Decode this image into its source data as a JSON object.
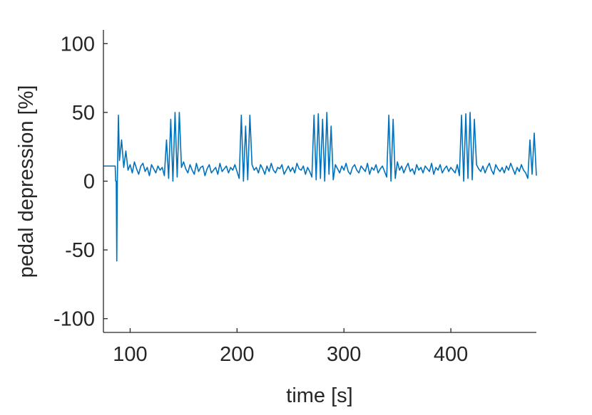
{
  "chart_data": {
    "type": "line",
    "xlabel": "time [s]",
    "ylabel": "pedal depression [%]",
    "xlim": [
      75,
      480
    ],
    "ylim": [
      -110,
      110
    ],
    "xticks": [
      100,
      200,
      300,
      400
    ],
    "yticks": [
      -100,
      -50,
      0,
      50,
      100
    ],
    "color": "#0072bd",
    "x": [
      75,
      86,
      86.5,
      87,
      87.5,
      88,
      89,
      90,
      92,
      94,
      96,
      98,
      100,
      102,
      104,
      106,
      108,
      110,
      112,
      114,
      116,
      118,
      120,
      122,
      124,
      126,
      128,
      130,
      132,
      134,
      136,
      138,
      140,
      142,
      144,
      146,
      148,
      150,
      152,
      154,
      156,
      158,
      160,
      162,
      164,
      166,
      168,
      170,
      172,
      174,
      176,
      178,
      180,
      182,
      184,
      186,
      188,
      190,
      192,
      194,
      196,
      198,
      200,
      202,
      204,
      206,
      208,
      210,
      212,
      214,
      216,
      218,
      220,
      222,
      224,
      226,
      228,
      230,
      232,
      234,
      236,
      238,
      240,
      242,
      244,
      246,
      248,
      250,
      252,
      254,
      256,
      258,
      260,
      262,
      264,
      266,
      268,
      270,
      272,
      274,
      276,
      278,
      280,
      282,
      284,
      286,
      288,
      290,
      292,
      294,
      296,
      298,
      300,
      302,
      304,
      306,
      308,
      310,
      312,
      314,
      316,
      318,
      320,
      322,
      324,
      326,
      328,
      330,
      332,
      334,
      336,
      338,
      340,
      342,
      344,
      346,
      348,
      350,
      352,
      354,
      356,
      358,
      360,
      362,
      364,
      366,
      368,
      370,
      372,
      374,
      376,
      378,
      380,
      382,
      384,
      386,
      388,
      390,
      392,
      394,
      396,
      398,
      400,
      402,
      404,
      406,
      408,
      410,
      412,
      414,
      416,
      418,
      420,
      422,
      424,
      426,
      428,
      430,
      432,
      434,
      436,
      438,
      440,
      442,
      444,
      446,
      448,
      450,
      452,
      454,
      456,
      458,
      460,
      462,
      464,
      466,
      468,
      470,
      472,
      474,
      476,
      478,
      480
    ],
    "values": [
      11,
      11,
      0,
      0,
      -58,
      0,
      48,
      15,
      30,
      10,
      22,
      8,
      12,
      6,
      14,
      9,
      5,
      11,
      13,
      7,
      10,
      4,
      12,
      9,
      6,
      11,
      8,
      10,
      4,
      30,
      2,
      45,
      0,
      50,
      3,
      50,
      10,
      14,
      9,
      6,
      12,
      8,
      5,
      13,
      7,
      10,
      11,
      4,
      9,
      12,
      6,
      8,
      10,
      5,
      13,
      7,
      9,
      11,
      6,
      10,
      8,
      12,
      7,
      2,
      48,
      0,
      40,
      1,
      48,
      12,
      8,
      10,
      6,
      12,
      9,
      5,
      11,
      7,
      13,
      8,
      6,
      10,
      9,
      12,
      5,
      8,
      11,
      7,
      10,
      6,
      13,
      9,
      8,
      11,
      5,
      10,
      7,
      3,
      48,
      1,
      49,
      2,
      45,
      0,
      50,
      5,
      40,
      1,
      12,
      9,
      6,
      11,
      8,
      13,
      7,
      5,
      10,
      12,
      8,
      6,
      11,
      9,
      7,
      13,
      5,
      10,
      8,
      12,
      6,
      9,
      11,
      7,
      3,
      48,
      0,
      45,
      2,
      14,
      8,
      11,
      6,
      10,
      13,
      7,
      9,
      5,
      12,
      8,
      10,
      6,
      11,
      9,
      7,
      13,
      5,
      10,
      8,
      12,
      6,
      9,
      11,
      7,
      10,
      8,
      6,
      12,
      4,
      48,
      0,
      49,
      2,
      50,
      1,
      45,
      12,
      9,
      7,
      11,
      6,
      10,
      13,
      8,
      5,
      12,
      9,
      7,
      10,
      6,
      11,
      8,
      13,
      9,
      5,
      10,
      7,
      12,
      8,
      6,
      2,
      30,
      5,
      35,
      4
    ]
  }
}
